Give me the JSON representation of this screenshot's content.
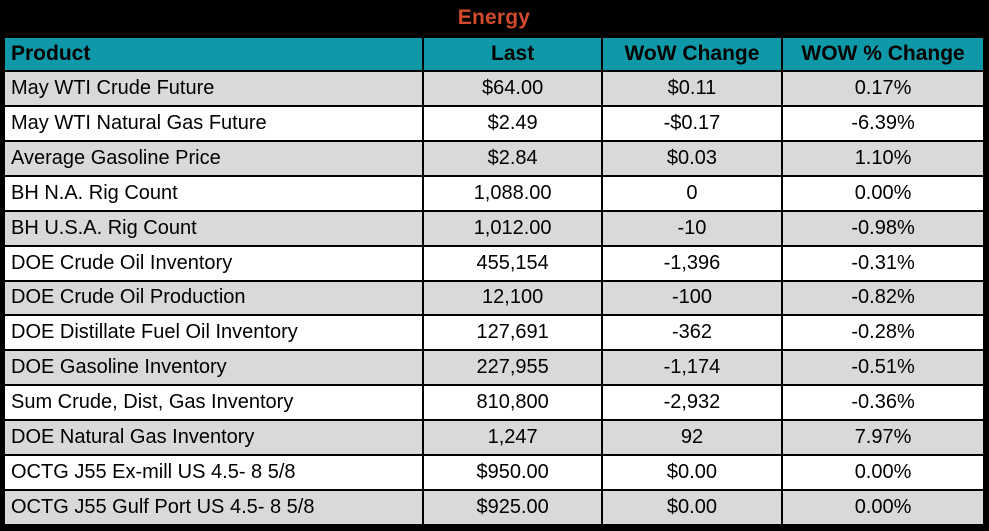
{
  "title": "Energy",
  "colors": {
    "frame_bg": "#000000",
    "title_text": "#D04A2B",
    "header_bg": "#0E98A8",
    "row_bg": "#FFFFFF",
    "row_alt_bg": "#D9D9D9",
    "text": "#000000"
  },
  "chart_data": {
    "type": "table",
    "title": "Energy",
    "columns": [
      "Product",
      "Last",
      "WoW Change",
      "WOW % Change"
    ],
    "rows": [
      [
        "May WTI Crude Future",
        "$64.00",
        "$0.11",
        "0.17%"
      ],
      [
        "May WTI Natural Gas Future",
        "$2.49",
        "-$0.17",
        "-6.39%"
      ],
      [
        "Average Gasoline Price",
        "$2.84",
        "$0.03",
        "1.10%"
      ],
      [
        "BH N.A. Rig Count",
        "1,088.00",
        "0",
        "0.00%"
      ],
      [
        "BH U.S.A. Rig Count",
        "1,012.00",
        "-10",
        "-0.98%"
      ],
      [
        "DOE Crude Oil Inventory",
        "455,154",
        "-1,396",
        "-0.31%"
      ],
      [
        "DOE Crude Oil Production",
        "12,100",
        "-100",
        "-0.82%"
      ],
      [
        "DOE Distillate Fuel Oil Inventory",
        "127,691",
        "-362",
        "-0.28%"
      ],
      [
        "DOE Gasoline Inventory",
        "227,955",
        "-1,174",
        "-0.51%"
      ],
      [
        "Sum Crude, Dist, Gas Inventory",
        "810,800",
        "-2,932",
        "-0.36%"
      ],
      [
        "DOE Natural Gas Inventory",
        "1,247",
        "92",
        "7.97%"
      ],
      [
        "OCTG J55 Ex-mill US 4.5- 8 5/8",
        "$950.00",
        "$0.00",
        "0.00%"
      ],
      [
        "OCTG J55 Gulf Port US 4.5- 8 5/8",
        "$925.00",
        "$0.00",
        "0.00%"
      ]
    ]
  }
}
